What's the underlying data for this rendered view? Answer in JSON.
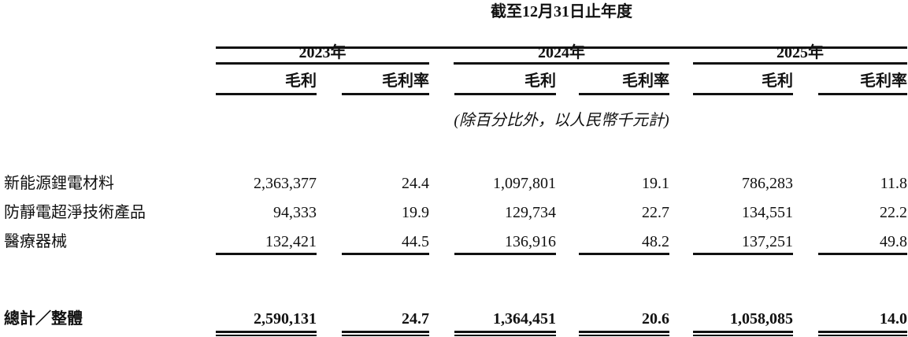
{
  "header": {
    "period": "截至12月31日止年度",
    "years": [
      "2023年",
      "2024年",
      "2025年"
    ],
    "sub_headers": [
      "毛利",
      "毛利率",
      "毛利",
      "毛利率",
      "毛利",
      "毛利率"
    ],
    "note": "(除百分比外，以人民幣千元計)"
  },
  "rows": [
    {
      "label": "新能源鋰電材料",
      "values": [
        "2,363,377",
        "24.4",
        "1,097,801",
        "19.1",
        "786,283",
        "11.8"
      ]
    },
    {
      "label": "防靜電超淨技術產品",
      "values": [
        "94,333",
        "19.9",
        "129,734",
        "22.7",
        "134,551",
        "22.2"
      ]
    },
    {
      "label": "醫療器械",
      "values": [
        "132,421",
        "44.5",
        "136,916",
        "48.2",
        "137,251",
        "49.8"
      ]
    }
  ],
  "total": {
    "label": "總計／整體",
    "values": [
      "2,590,131",
      "24.7",
      "1,364,451",
      "20.6",
      "1,058,085",
      "14.0"
    ]
  }
}
